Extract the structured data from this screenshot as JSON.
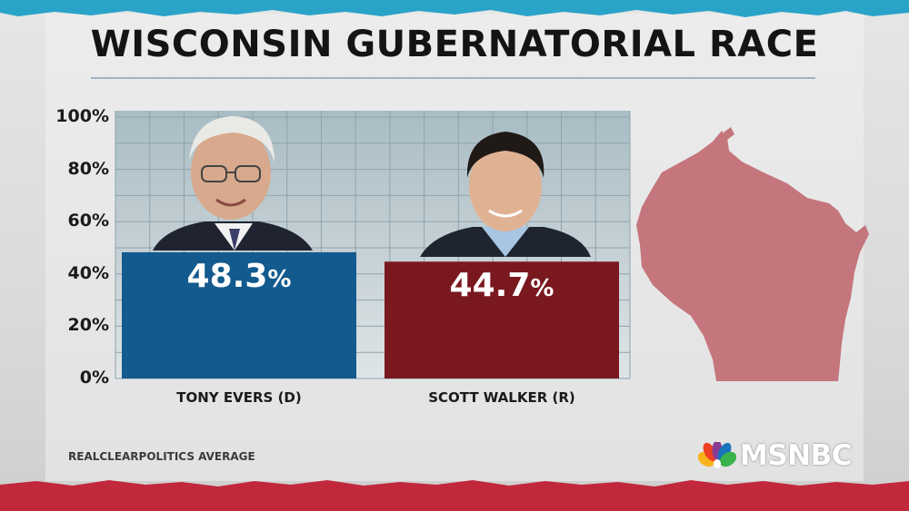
{
  "title": "WISCONSIN GUBERNATORIAL RACE",
  "source": "REALCLEARPOLITICS AVERAGE",
  "network_logo": "MSNBC",
  "icons": {
    "logo": "peacock-icon",
    "map": "wisconsin-map-icon",
    "photos": [
      "candidate-photo-evers",
      "candidate-photo-walker"
    ]
  },
  "colors": {
    "democrat": "#135a8e",
    "republican": "#7a1820",
    "map": "#c4767c",
    "accent_top": "#2aa3c8",
    "accent_bottom": "#c2283c"
  },
  "chart_data": {
    "type": "bar",
    "categories": [
      "TONY EVERS (D)",
      "SCOTT WALKER (R)"
    ],
    "values": [
      48.3,
      44.7
    ],
    "value_labels": [
      "48.3",
      "44.7"
    ],
    "unit": "%",
    "yticks": [
      "100%",
      "80%",
      "60%",
      "40%",
      "20%",
      "0%"
    ],
    "ytick_values": [
      100,
      80,
      60,
      40,
      20,
      0
    ],
    "ylim": [
      0,
      100
    ],
    "grid": true,
    "xlabel": "",
    "ylabel": ""
  }
}
